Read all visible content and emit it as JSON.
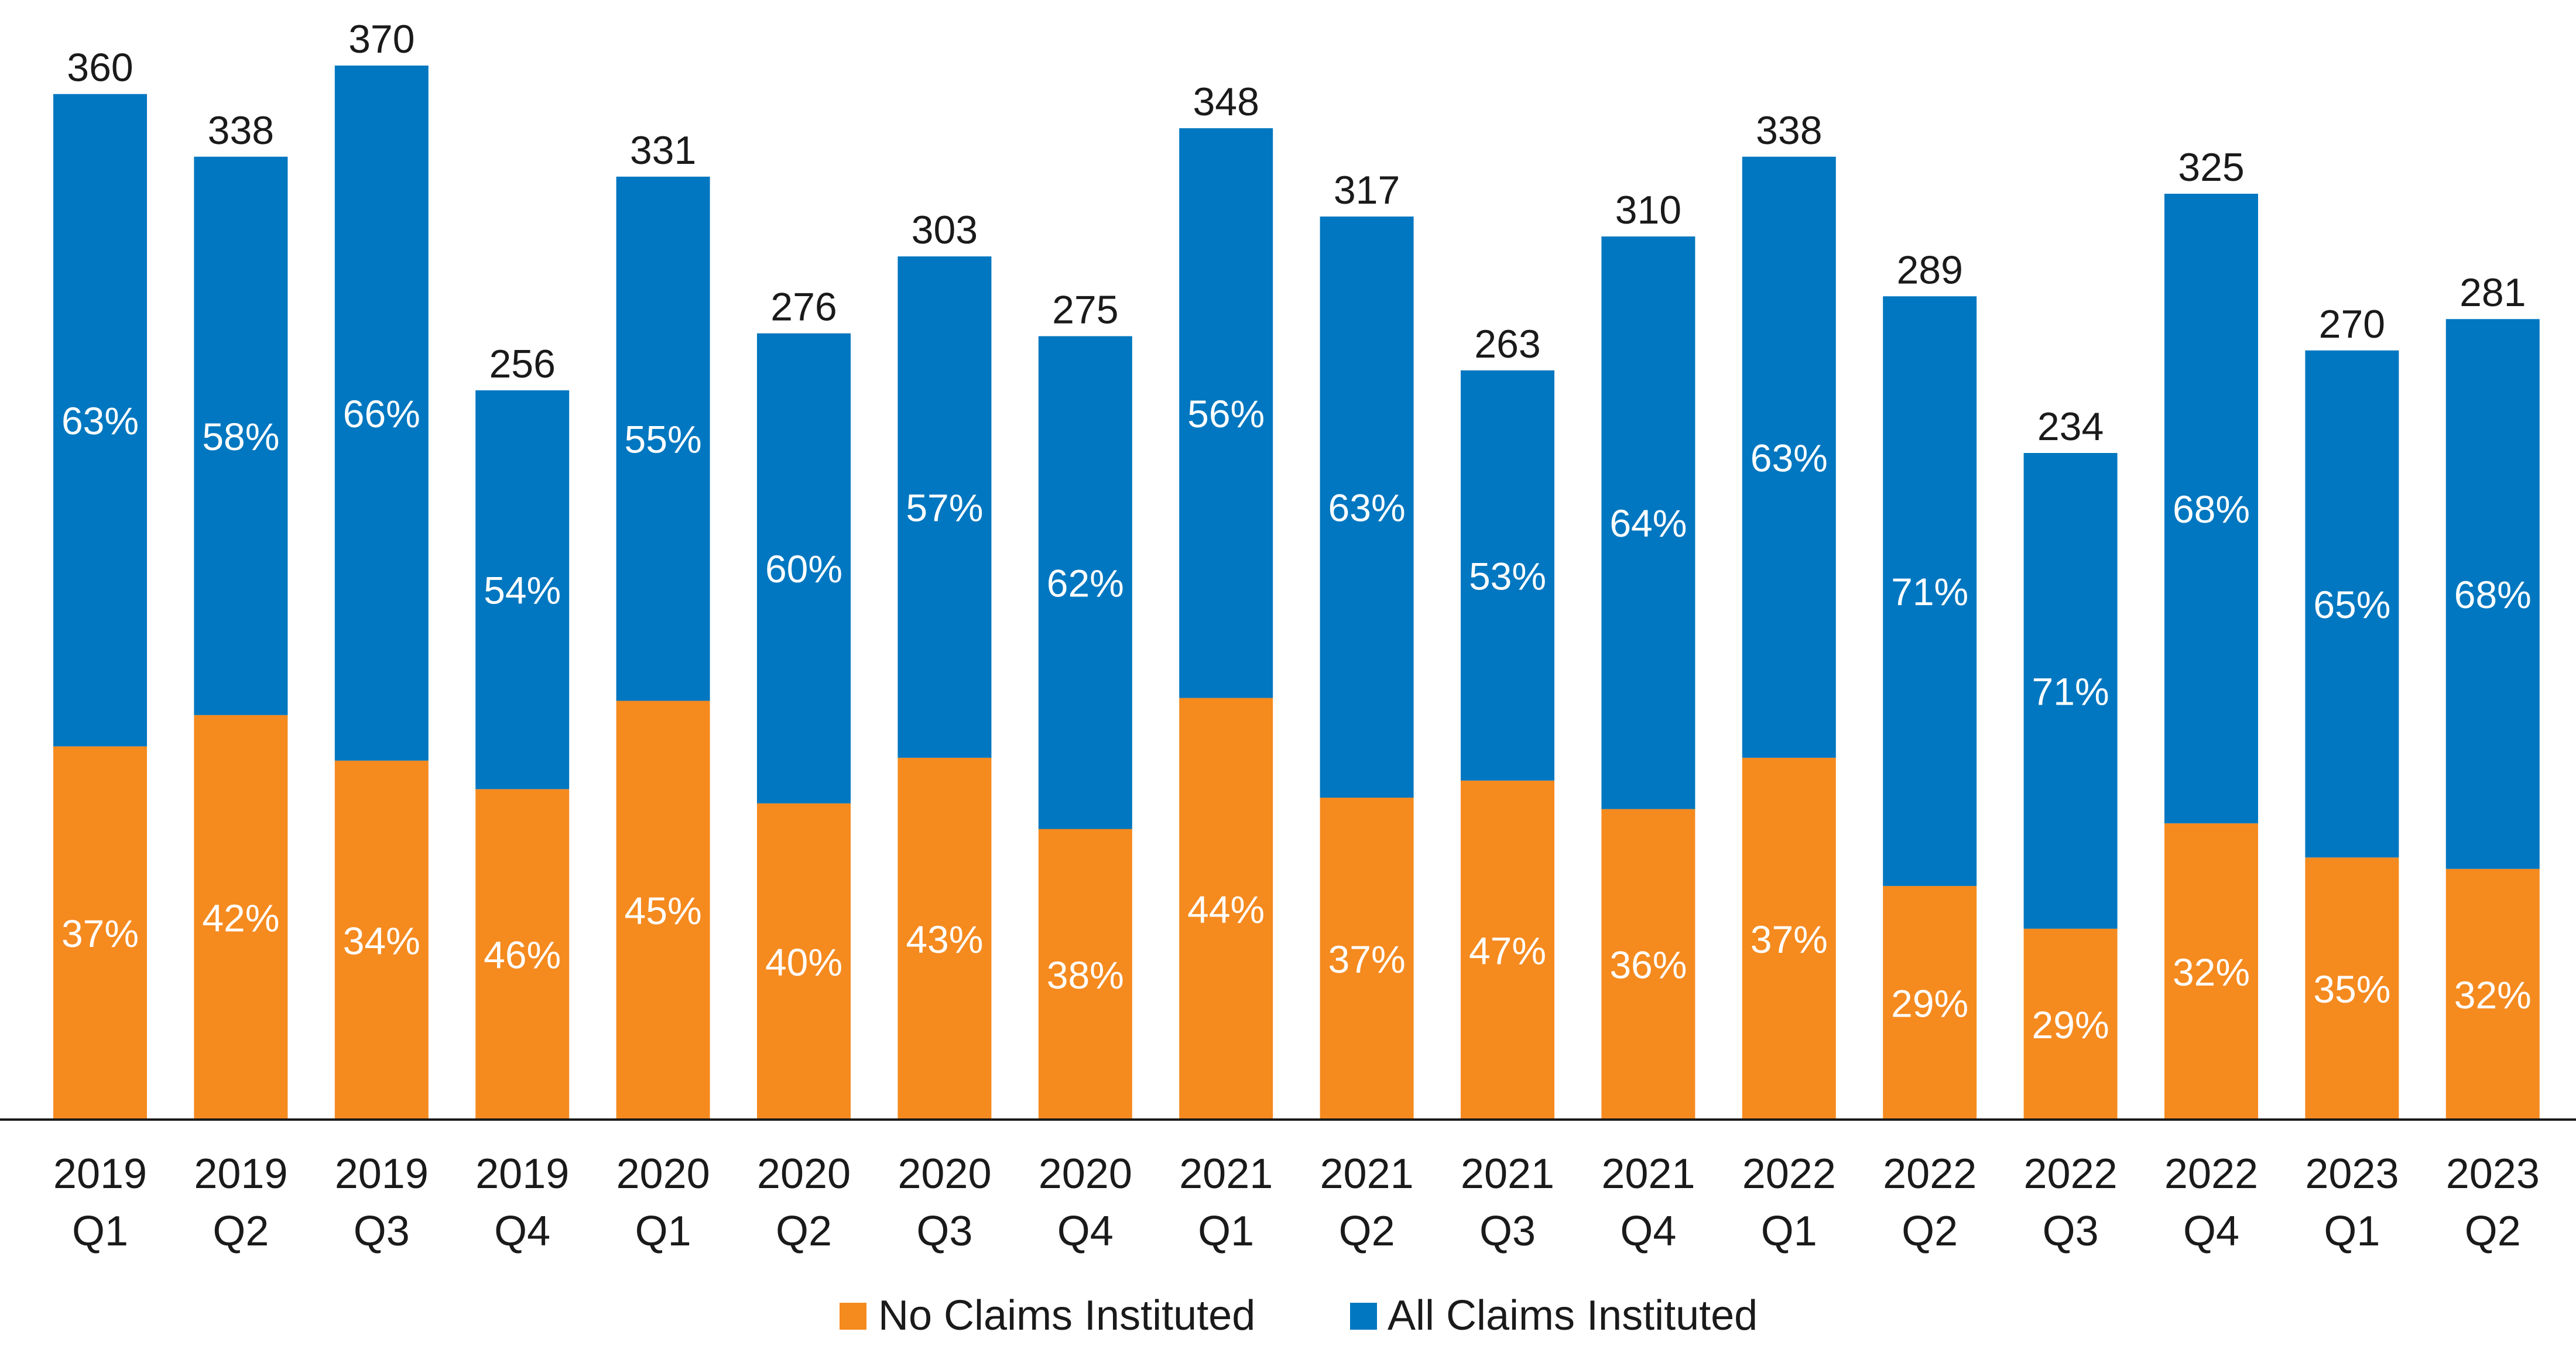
{
  "chart_data": {
    "type": "bar",
    "stacked": true,
    "title": "",
    "xlabel": "",
    "ylabel": "",
    "categories": [
      [
        "2019",
        "Q1"
      ],
      [
        "2019",
        "Q2"
      ],
      [
        "2019",
        "Q3"
      ],
      [
        "2019",
        "Q4"
      ],
      [
        "2020",
        "Q1"
      ],
      [
        "2020",
        "Q2"
      ],
      [
        "2020",
        "Q3"
      ],
      [
        "2020",
        "Q4"
      ],
      [
        "2021",
        "Q1"
      ],
      [
        "2021",
        "Q2"
      ],
      [
        "2021",
        "Q3"
      ],
      [
        "2021",
        "Q4"
      ],
      [
        "2022",
        "Q1"
      ],
      [
        "2022",
        "Q2"
      ],
      [
        "2022",
        "Q3"
      ],
      [
        "2022",
        "Q4"
      ],
      [
        "2023",
        "Q1"
      ],
      [
        "2023",
        "Q2"
      ]
    ],
    "totals": [
      360,
      338,
      370,
      256,
      331,
      276,
      303,
      275,
      348,
      317,
      263,
      310,
      338,
      289,
      234,
      325,
      270,
      281
    ],
    "series": [
      {
        "name": "No Claims Instituted",
        "color": "#f58a1f",
        "percent_labels": [
          "37%",
          "42%",
          "34%",
          "46%",
          "45%",
          "40%",
          "43%",
          "38%",
          "44%",
          "37%",
          "47%",
          "36%",
          "37%",
          "29%",
          "29%",
          "32%",
          "35%",
          "32%"
        ],
        "values": [
          131,
          142,
          126,
          116,
          147,
          111,
          127,
          102,
          148,
          113,
          119,
          109,
          127,
          82,
          67,
          104,
          92,
          88
        ]
      },
      {
        "name": "All Claims Instituted",
        "color": "#0077c0",
        "percent_labels": [
          "63%",
          "58%",
          "66%",
          "54%",
          "55%",
          "60%",
          "57%",
          "62%",
          "56%",
          "63%",
          "53%",
          "64%",
          "63%",
          "71%",
          "71%",
          "68%",
          "65%",
          "68%"
        ],
        "values": [
          229,
          196,
          244,
          140,
          184,
          165,
          176,
          173,
          200,
          204,
          144,
          201,
          211,
          207,
          167,
          221,
          178,
          193
        ]
      }
    ],
    "ylim": [
      0,
      370
    ],
    "axis_visible": false,
    "grid": false,
    "legend": "bottom-center"
  }
}
